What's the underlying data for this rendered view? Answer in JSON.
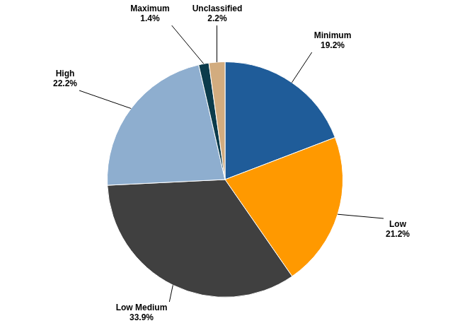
{
  "chart_data": {
    "type": "pie",
    "categories": [
      "Minimum",
      "Low",
      "Low Medium",
      "High",
      "Maximum",
      "Unclassified"
    ],
    "values": [
      19.2,
      21.2,
      33.9,
      22.2,
      1.4,
      2.2
    ],
    "value_labels": [
      "19.2%",
      "21.2%",
      "33.9%",
      "22.2%",
      "1.4%",
      "2.2%"
    ],
    "colors": [
      "#1f5c99",
      "#ff9900",
      "#404040",
      "#8eaecf",
      "#0b3b4b",
      "#d2ac7f"
    ],
    "data_labels": true
  }
}
